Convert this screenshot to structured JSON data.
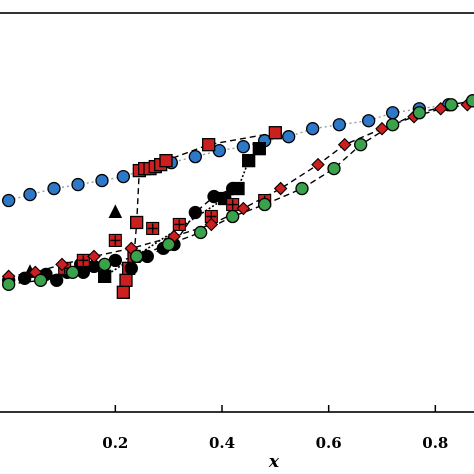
{
  "chart_data": {
    "type": "scatter",
    "xlabel": "x",
    "xlim": [
      -0.02,
      0.88
    ],
    "ylim": [
      0,
      1
    ],
    "x_ticks": [
      {
        "value": 0.2,
        "label": "0.2"
      },
      {
        "value": 0.4,
        "label": "0.4"
      },
      {
        "value": 0.6,
        "label": "0.6"
      },
      {
        "value": 0.8,
        "label": "0.8"
      }
    ],
    "grid": false,
    "series": [
      {
        "marker": "circle",
        "color": "#2e78c8",
        "line": "dotted-gray",
        "x": [
          0.0,
          0.04,
          0.085,
          0.13,
          0.175,
          0.215,
          0.26,
          0.305,
          0.35,
          0.395,
          0.44,
          0.48,
          0.525,
          0.57,
          0.62,
          0.675,
          0.72,
          0.77,
          0.825,
          0.87
        ],
        "y": [
          0.53,
          0.545,
          0.56,
          0.57,
          0.58,
          0.59,
          0.61,
          0.625,
          0.64,
          0.655,
          0.665,
          0.68,
          0.69,
          0.71,
          0.72,
          0.73,
          0.75,
          0.76,
          0.77,
          0.78
        ]
      },
      {
        "marker": "square",
        "color": "#cc1f1f",
        "line": "dashed",
        "x": [
          0.215,
          0.22,
          0.225,
          0.235,
          0.24,
          0.245,
          0.255,
          0.265,
          0.275,
          0.285,
          0.295,
          0.375,
          0.5
        ],
        "y": [
          0.3,
          0.33,
          0.36,
          0.39,
          0.475,
          0.605,
          0.61,
          0.61,
          0.615,
          0.62,
          0.63,
          0.67,
          0.7
        ]
      },
      {
        "marker": "circle",
        "color": "#000000",
        "line": "dashed",
        "x": [
          0.0,
          0.03,
          0.07,
          0.09,
          0.11,
          0.135,
          0.14,
          0.16,
          0.2,
          0.23,
          0.26,
          0.29,
          0.31,
          0.35,
          0.385,
          0.42
        ],
        "y": [
          0.33,
          0.335,
          0.345,
          0.33,
          0.35,
          0.37,
          0.35,
          0.365,
          0.38,
          0.36,
          0.39,
          0.41,
          0.42,
          0.5,
          0.54,
          0.56
        ]
      },
      {
        "marker": "square",
        "color": "#000000",
        "line": "dotted",
        "x": [
          0.18,
          0.405,
          0.43,
          0.45,
          0.47
        ],
        "y": [
          0.34,
          0.535,
          0.56,
          0.63,
          0.66
        ]
      },
      {
        "marker": "triangle",
        "color": "#000000",
        "line": "none",
        "x": [
          0.04,
          0.2
        ],
        "y": [
          0.35,
          0.5
        ]
      },
      {
        "marker": "square-plus",
        "color": "#cc1f1f",
        "line": "none",
        "x": [
          0.105,
          0.14,
          0.2,
          0.27,
          0.32,
          0.38,
          0.42,
          0.48
        ],
        "y": [
          0.36,
          0.38,
          0.43,
          0.46,
          0.47,
          0.49,
          0.52,
          0.53
        ]
      },
      {
        "marker": "diamond",
        "color": "#cc1f1f",
        "line": "dashed",
        "x": [
          0.0,
          0.05,
          0.1,
          0.16,
          0.23,
          0.31,
          0.38,
          0.44,
          0.51,
          0.58,
          0.63,
          0.7,
          0.76,
          0.81,
          0.86
        ],
        "y": [
          0.34,
          0.35,
          0.37,
          0.39,
          0.41,
          0.44,
          0.47,
          0.51,
          0.56,
          0.62,
          0.67,
          0.71,
          0.74,
          0.76,
          0.77
        ]
      },
      {
        "marker": "circle",
        "color": "#3aa24a",
        "line": "dashed",
        "x": [
          0.0,
          0.06,
          0.12,
          0.18,
          0.24,
          0.3,
          0.36,
          0.42,
          0.48,
          0.55,
          0.61,
          0.66,
          0.72,
          0.77,
          0.83,
          0.87
        ],
        "y": [
          0.32,
          0.33,
          0.35,
          0.37,
          0.39,
          0.42,
          0.45,
          0.49,
          0.52,
          0.56,
          0.61,
          0.67,
          0.72,
          0.75,
          0.77,
          0.78
        ]
      }
    ]
  }
}
